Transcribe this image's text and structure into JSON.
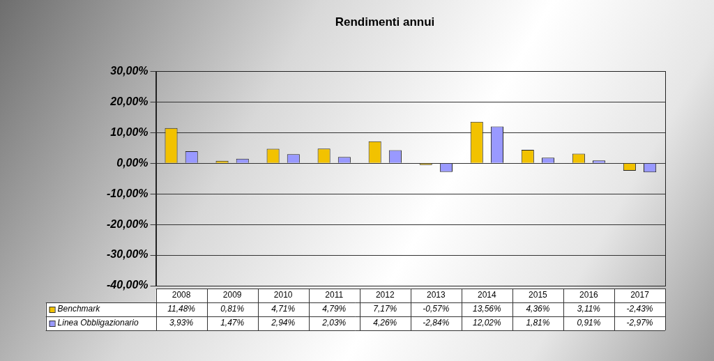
{
  "chart_data": {
    "type": "bar",
    "title": "Rendimenti annui",
    "categories": [
      "2008",
      "2009",
      "2010",
      "2011",
      "2012",
      "2013",
      "2014",
      "2015",
      "2016",
      "2017"
    ],
    "series": [
      {
        "name": "Benchmark",
        "color": "#f2c200",
        "values": [
          11.48,
          0.81,
          4.71,
          4.79,
          7.17,
          -0.57,
          13.56,
          4.36,
          3.11,
          -2.43
        ],
        "value_labels": [
          "11,48%",
          "0,81%",
          "4,71%",
          "4,79%",
          "7,17%",
          "-0,57%",
          "13,56%",
          "4,36%",
          "3,11%",
          "-2,43%"
        ]
      },
      {
        "name": "Linea Obbligazionario",
        "color": "#9999ff",
        "values": [
          3.93,
          1.47,
          2.94,
          2.03,
          4.26,
          -2.84,
          12.02,
          1.81,
          0.91,
          -2.97
        ],
        "value_labels": [
          "3,93%",
          "1,47%",
          "2,94%",
          "2,03%",
          "4,26%",
          "-2,84%",
          "12,02%",
          "1,81%",
          "0,91%",
          "-2,97%"
        ]
      }
    ],
    "ylim": [
      -40,
      30
    ],
    "yticks": [
      {
        "value": -40,
        "label": "-40,00%"
      },
      {
        "value": -30,
        "label": "-30,00%"
      },
      {
        "value": -20,
        "label": "-20,00%"
      },
      {
        "value": -10,
        "label": "-10,00%"
      },
      {
        "value": 0,
        "label": "0,00%"
      },
      {
        "value": 10,
        "label": "10,00%"
      },
      {
        "value": 20,
        "label": "20,00%"
      },
      {
        "value": 30,
        "label": "30,00%"
      }
    ],
    "grid": true
  }
}
